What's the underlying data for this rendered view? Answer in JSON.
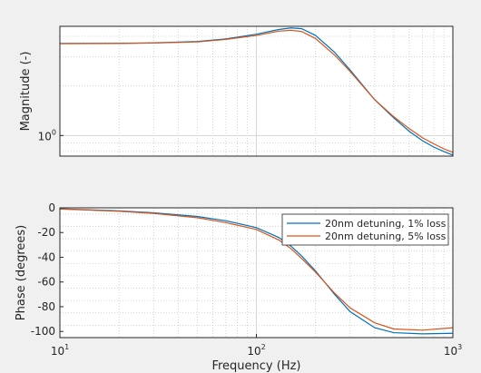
{
  "chart_data": [
    {
      "type": "line",
      "xscale": "log",
      "yscale": "log",
      "xlim": [
        10,
        1000
      ],
      "ylim": [
        0.75,
        4.6
      ],
      "grid": true,
      "minor_grid": true,
      "ylabel": "Magnitude (-)",
      "xlabel": "",
      "yticks": [
        {
          "value": 1,
          "base": "10",
          "exp": "0"
        }
      ],
      "xticks": [],
      "series": [
        {
          "color": "#0072bd",
          "points": [
            [
              10,
              3.62
            ],
            [
              20,
              3.63
            ],
            [
              30,
              3.65
            ],
            [
              50,
              3.72
            ],
            [
              70,
              3.86
            ],
            [
              100,
              4.12
            ],
            [
              130,
              4.4
            ],
            [
              150,
              4.5
            ],
            [
              170,
              4.45
            ],
            [
              200,
              4.05
            ],
            [
              250,
              3.2
            ],
            [
              300,
              2.5
            ],
            [
              400,
              1.65
            ],
            [
              500,
              1.28
            ],
            [
              600,
              1.06
            ],
            [
              700,
              0.93
            ],
            [
              800,
              0.85
            ],
            [
              900,
              0.8
            ],
            [
              1000,
              0.76
            ]
          ]
        },
        {
          "color": "#d95319",
          "points": [
            [
              10,
              3.61
            ],
            [
              20,
              3.62
            ],
            [
              30,
              3.64
            ],
            [
              50,
              3.7
            ],
            [
              70,
              3.83
            ],
            [
              100,
              4.05
            ],
            [
              130,
              4.3
            ],
            [
              150,
              4.35
            ],
            [
              170,
              4.28
            ],
            [
              200,
              3.88
            ],
            [
              250,
              3.08
            ],
            [
              300,
              2.45
            ],
            [
              400,
              1.65
            ],
            [
              500,
              1.3
            ],
            [
              600,
              1.1
            ],
            [
              700,
              0.97
            ],
            [
              800,
              0.89
            ],
            [
              900,
              0.83
            ],
            [
              1000,
              0.79
            ]
          ]
        }
      ]
    },
    {
      "type": "line",
      "xscale": "log",
      "xlim": [
        10,
        1000
      ],
      "ylim": [
        -105,
        0
      ],
      "grid": true,
      "minor_grid": true,
      "ylabel": "Phase (degrees)",
      "xlabel": "Frequency (Hz)",
      "yticks": [
        0,
        -20,
        -40,
        -60,
        -80,
        -100
      ],
      "xticks": [
        {
          "value": 10,
          "base": "10",
          "exp": "1"
        },
        {
          "value": 100,
          "base": "10",
          "exp": "2"
        },
        {
          "value": 1000,
          "base": "10",
          "exp": "3"
        }
      ],
      "legend": "top-right",
      "series": [
        {
          "name": "20nm detuning, 1% loss",
          "color": "#0072bd",
          "points": [
            [
              10,
              -0.8
            ],
            [
              20,
              -2.5
            ],
            [
              30,
              -4
            ],
            [
              50,
              -7
            ],
            [
              70,
              -10.5
            ],
            [
              100,
              -16
            ],
            [
              130,
              -24
            ],
            [
              150,
              -31
            ],
            [
              170,
              -39
            ],
            [
              200,
              -51
            ],
            [
              250,
              -70
            ],
            [
              300,
              -84
            ],
            [
              400,
              -97
            ],
            [
              500,
              -101
            ],
            [
              700,
              -102
            ],
            [
              1000,
              -101.5
            ]
          ]
        },
        {
          "name": "20nm detuning, 5% loss",
          "color": "#d95319",
          "points": [
            [
              10,
              -0.9
            ],
            [
              20,
              -2.8
            ],
            [
              30,
              -4.5
            ],
            [
              50,
              -8
            ],
            [
              70,
              -12
            ],
            [
              100,
              -17.5
            ],
            [
              130,
              -26
            ],
            [
              150,
              -33
            ],
            [
              170,
              -41
            ],
            [
              200,
              -52
            ],
            [
              250,
              -69
            ],
            [
              300,
              -81
            ],
            [
              400,
              -93
            ],
            [
              500,
              -98
            ],
            [
              700,
              -99
            ],
            [
              1000,
              -97
            ]
          ]
        }
      ]
    }
  ]
}
